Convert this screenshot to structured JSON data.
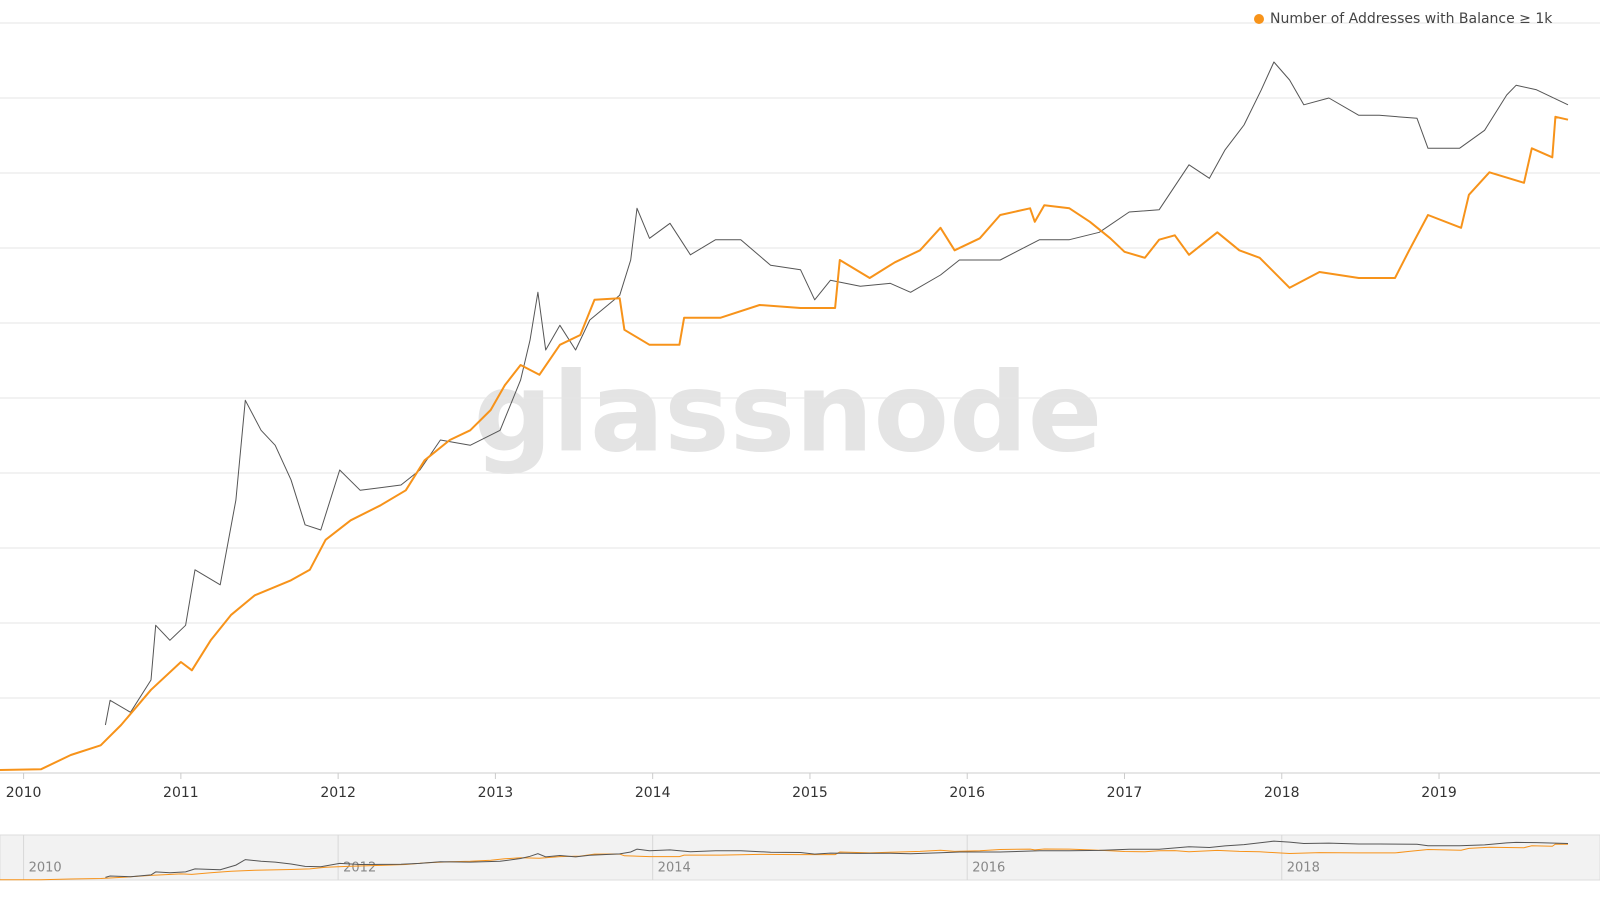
{
  "chart_data": {
    "type": "line",
    "watermark": "glassnode",
    "xlim": [
      2009.85,
      2019.82
    ],
    "xticks": [
      2010,
      2011,
      2012,
      2013,
      2014,
      2015,
      2016,
      2017,
      2018,
      2019
    ],
    "ylim": [
      0,
      10
    ],
    "yticks": [
      0,
      1,
      2,
      3,
      4,
      5,
      6,
      7,
      8,
      9,
      10
    ],
    "grid": true,
    "legend": "top-right",
    "series": [
      {
        "name": "Number of Addresses with Balance ≥ 1k",
        "color": "#f7931a",
        "width": 2,
        "x": [
          2009.85,
          2010.11,
          2010.3,
          2010.49,
          2010.62,
          2010.81,
          2011.0,
          2011.07,
          2011.19,
          2011.32,
          2011.47,
          2011.7,
          2011.82,
          2011.92,
          2012.08,
          2012.27,
          2012.43,
          2012.55,
          2012.71,
          2012.84,
          2012.97,
          2013.06,
          2013.16,
          2013.28,
          2013.41,
          2013.54,
          2013.63,
          2013.79,
          2013.82,
          2013.98,
          2014.17,
          2014.2,
          2014.43,
          2014.68,
          2014.94,
          2015.16,
          2015.19,
          2015.38,
          2015.54,
          2015.7,
          2015.83,
          2015.92,
          2016.08,
          2016.21,
          2016.4,
          2016.43,
          2016.49,
          2016.65,
          2016.78,
          2016.91,
          2017.0,
          2017.13,
          2017.22,
          2017.32,
          2017.41,
          2017.59,
          2017.73,
          2017.86,
          2018.05,
          2018.24,
          2018.49,
          2018.72,
          2018.81,
          2018.93,
          2019.14,
          2019.19,
          2019.32,
          2019.54,
          2019.59,
          2019.72,
          2019.74,
          2019.82
        ],
        "values": [
          0.04,
          0.05,
          0.24,
          0.37,
          0.64,
          1.11,
          1.48,
          1.37,
          1.77,
          2.11,
          2.37,
          2.57,
          2.71,
          3.11,
          3.37,
          3.57,
          3.77,
          4.17,
          4.44,
          4.57,
          4.84,
          5.17,
          5.44,
          5.31,
          5.71,
          5.84,
          6.31,
          6.33,
          5.91,
          5.71,
          5.71,
          6.07,
          6.07,
          6.24,
          6.2,
          6.2,
          6.84,
          6.6,
          6.81,
          6.97,
          7.27,
          6.97,
          7.13,
          7.44,
          7.53,
          7.35,
          7.57,
          7.53,
          7.35,
          7.13,
          6.95,
          6.87,
          7.11,
          7.17,
          6.91,
          7.21,
          6.97,
          6.87,
          6.47,
          6.68,
          6.6,
          6.6,
          6.97,
          7.44,
          7.27,
          7.71,
          8.01,
          7.87,
          8.33,
          8.21,
          8.75,
          8.71
        ]
      },
      {
        "color": "#555555",
        "width": 1,
        "x": [
          2010.52,
          2010.55,
          2010.68,
          2010.81,
          2010.84,
          2010.93,
          2011.03,
          2011.09,
          2011.25,
          2011.35,
          2011.41,
          2011.51,
          2011.6,
          2011.7,
          2011.79,
          2011.89,
          2012.01,
          2012.14,
          2012.4,
          2012.52,
          2012.65,
          2012.84,
          2013.03,
          2013.16,
          2013.22,
          2013.27,
          2013.32,
          2013.41,
          2013.51,
          2013.6,
          2013.79,
          2013.86,
          2013.9,
          2013.98,
          2014.11,
          2014.24,
          2014.4,
          2014.56,
          2014.75,
          2014.94,
          2015.03,
          2015.13,
          2015.32,
          2015.51,
          2015.64,
          2015.83,
          2015.95,
          2016.21,
          2016.46,
          2016.65,
          2016.84,
          2017.03,
          2017.22,
          2017.41,
          2017.54,
          2017.64,
          2017.76,
          2017.87,
          2017.95,
          2018.05,
          2018.14,
          2018.3,
          2018.49,
          2018.62,
          2018.86,
          2018.93,
          2019.13,
          2019.29,
          2019.43,
          2019.49,
          2019.62,
          2019.82
        ],
        "values": [
          0.64,
          0.97,
          0.81,
          1.24,
          1.97,
          1.77,
          1.97,
          2.71,
          2.51,
          3.64,
          4.97,
          4.57,
          4.37,
          3.91,
          3.31,
          3.24,
          4.04,
          3.77,
          3.84,
          4.04,
          4.44,
          4.37,
          4.57,
          5.24,
          5.77,
          6.41,
          5.64,
          5.97,
          5.64,
          6.04,
          6.37,
          6.84,
          7.53,
          7.13,
          7.33,
          6.91,
          7.11,
          7.11,
          6.77,
          6.71,
          6.31,
          6.57,
          6.49,
          6.53,
          6.41,
          6.64,
          6.84,
          6.84,
          7.11,
          7.11,
          7.21,
          7.48,
          7.51,
          8.11,
          7.93,
          8.31,
          8.64,
          9.11,
          9.48,
          9.24,
          8.91,
          9.0,
          8.77,
          8.77,
          8.73,
          8.33,
          8.33,
          8.57,
          9.04,
          9.17,
          9.11,
          8.91
        ]
      }
    ],
    "navigator": {
      "xticks": [
        2010,
        2012,
        2014,
        2016,
        2018
      ]
    }
  }
}
